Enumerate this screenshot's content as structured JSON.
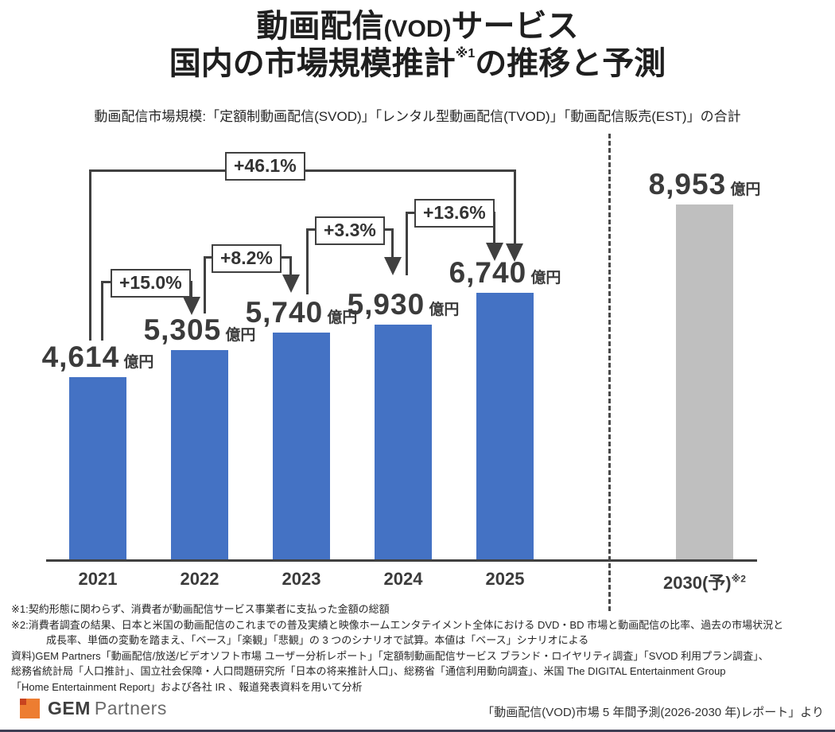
{
  "title": {
    "line1_a": "動画配信",
    "line1_b": "(VOD)",
    "line1_c": "サービス",
    "line2_a": "国内の市場規模推計",
    "line2_sup": "※1",
    "line2_b": "の推移と予測"
  },
  "subtitle": "動画配信市場規模:「定額制動画配信(SVOD)」「レンタル型動画配信(TVOD)」「動画配信販売(EST)」の合計",
  "chart_data": {
    "type": "bar",
    "title": "動画配信(VOD)サービス 国内の市場規模推計の推移と予測",
    "xlabel": "",
    "ylabel": "",
    "unit": "億円",
    "categories": [
      "2021",
      "2022",
      "2023",
      "2024",
      "2025",
      "2030(予)"
    ],
    "category_notes": [
      "",
      "",
      "",
      "",
      "",
      "※2"
    ],
    "values": [
      4614,
      5305,
      5740,
      5930,
      6740,
      8953
    ],
    "forecast_index": 5,
    "ylim": [
      0,
      9000
    ],
    "grid": false,
    "legend": "none",
    "bar_color_actual": "#4472c4",
    "bar_color_forecast": "#bfbfbf",
    "growth": [
      {
        "from": "2021",
        "to": "2022",
        "label": "+15.0%"
      },
      {
        "from": "2022",
        "to": "2023",
        "label": "+8.2%"
      },
      {
        "from": "2023",
        "to": "2024",
        "label": "+3.3%"
      },
      {
        "from": "2024",
        "to": "2025",
        "label": "+13.6%"
      },
      {
        "from": "2021",
        "to": "2025",
        "label": "+46.1%"
      }
    ]
  },
  "footnotes": [
    "※1:契約形態に関わらず、消費者が動画配信サービス事業者に支払った金額の総額",
    "※2:消費者調査の結果、日本と米国の動画配信のこれまでの普及実績と映像ホームエンタテイメント全体における DVD・BD 市場と動画配信の比率、過去の市場状況と",
    "成長率、単価の変動を踏まえ、「ベース」「楽観」「悲観」の 3 つのシナリオで試算。本値は「ベース」シナリオによる",
    "資料)GEM Partners「動画配信/放送/ビデオソフト市場 ユーザー分析レポート」「定額制動画配信サービス ブランド・ロイヤリティ調査」「SVOD 利用プラン調査」、",
    "総務省統計局「人口推計」、国立社会保障・人口問題研究所「日本の将来推計人口」、総務省「通信利用動向調査」、米国 The DIGITAL Entertainment Group",
    "「Home Entertainment Report」および各社 IR 、報道発表資料を用いて分析"
  ],
  "footer": {
    "logo_bold": "GEM",
    "logo_rest": "Partners",
    "logo_color": "#ed7d31",
    "logo_accent_color": "#c8431f",
    "strip_color": "#3f3f55",
    "source": "「動画配信(VOD)市場 5 年間予測(2026-2030 年)レポート」より"
  }
}
